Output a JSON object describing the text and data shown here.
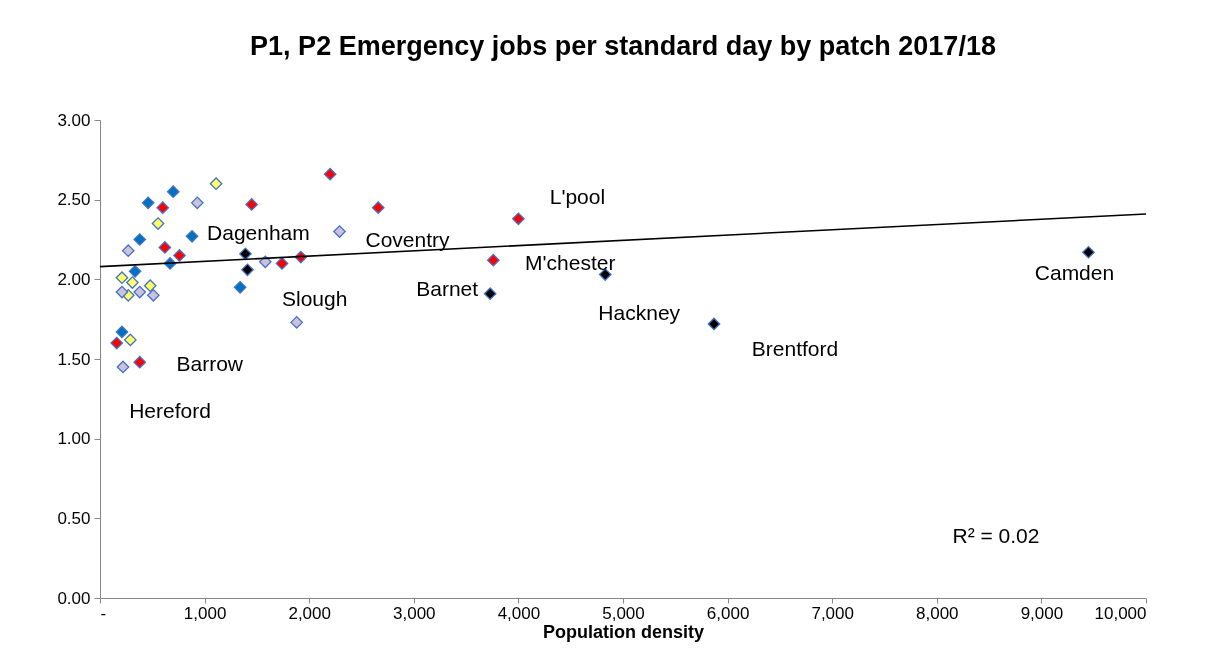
{
  "chart_data": {
    "type": "scatter",
    "title": "P1, P2 Emergency jobs per standard day by patch 2017/18",
    "xlabel": "Population density",
    "xlim": [
      0,
      10000
    ],
    "ylim": [
      0,
      3
    ],
    "xticks": [
      {
        "value": 0,
        "label": "-"
      },
      {
        "value": 1000,
        "label": "1,000"
      },
      {
        "value": 2000,
        "label": "2,000"
      },
      {
        "value": 3000,
        "label": "3,000"
      },
      {
        "value": 4000,
        "label": "4,000"
      },
      {
        "value": 5000,
        "label": "5,000"
      },
      {
        "value": 6000,
        "label": "6,000"
      },
      {
        "value": 7000,
        "label": "7,000"
      },
      {
        "value": 8000,
        "label": "8,000"
      },
      {
        "value": 9000,
        "label": "9,000"
      },
      {
        "value": 10000,
        "label": "10,000"
      }
    ],
    "yticks": [
      {
        "value": 0,
        "label": "0.00"
      },
      {
        "value": 0.5,
        "label": "0.50"
      },
      {
        "value": 1,
        "label": "1.00"
      },
      {
        "value": 1.5,
        "label": "1.50"
      },
      {
        "value": 2,
        "label": "2.00"
      },
      {
        "value": 2.5,
        "label": "2.50"
      },
      {
        "value": 3,
        "label": "3.00"
      }
    ],
    "grid": false,
    "marker": "diamond",
    "series": [
      {
        "color": "#ff0000",
        "x": [
          600,
          1450,
          2200,
          2660,
          4000,
          3760,
          620,
          760,
          1740,
          1920,
          160,
          380
        ],
        "values": [
          2.45,
          2.47,
          2.66,
          2.45,
          2.38,
          2.12,
          2.2,
          2.15,
          2.1,
          2.14,
          1.6,
          1.48
        ]
      },
      {
        "color": "#0070c0",
        "x": [
          700,
          460,
          380,
          880,
          670,
          335,
          1340,
          210
        ],
        "values": [
          2.55,
          2.48,
          2.25,
          2.27,
          2.1,
          2.05,
          1.95,
          1.67
        ]
      },
      {
        "color": "#ffff66",
        "x": [
          1110,
          555,
          210,
          480,
          310,
          270,
          290
        ],
        "values": [
          2.6,
          2.35,
          2.01,
          1.96,
          1.98,
          1.9,
          1.62
        ]
      },
      {
        "color": "#ccc0da",
        "x": [
          930,
          270,
          210,
          380,
          510,
          1580,
          2290,
          1880,
          220
        ],
        "values": [
          2.48,
          2.18,
          1.92,
          1.92,
          1.9,
          2.11,
          2.3,
          1.73,
          1.45
        ]
      },
      {
        "color": "#000000",
        "x": [
          9450,
          5870,
          4830,
          3730,
          1390,
          1410
        ],
        "values": [
          2.17,
          1.72,
          2.03,
          1.91,
          2.16,
          2.06
        ]
      },
      {
        "type": "line",
        "marker": "none",
        "color": "#000000",
        "x": [
          0,
          10000
        ],
        "values": [
          2.08,
          2.41
        ]
      }
    ],
    "annotations": [
      {
        "text": "Hereford",
        "x": 220,
        "y": 1.45
      },
      {
        "text": "Barrow",
        "x": 380,
        "y": 1.48
      },
      {
        "text": "Dagenham",
        "x": 1390,
        "y": 2.16
      },
      {
        "text": "Coventry",
        "x": 2290,
        "y": 2.3
      },
      {
        "text": "Slough",
        "x": 1880,
        "y": 1.73
      },
      {
        "text": "L'pool",
        "x": 4000,
        "y": 2.38
      },
      {
        "text": "M'chester",
        "x": 3760,
        "y": 2.12
      },
      {
        "text": "Barnet",
        "x": 3730,
        "y": 1.91
      },
      {
        "text": "Hackney",
        "x": 4830,
        "y": 2.03
      },
      {
        "text": "Brentford",
        "x": 5870,
        "y": 1.72
      },
      {
        "text": "Camden",
        "x": 9450,
        "y": 2.17
      },
      "R² = 0.02"
    ]
  }
}
